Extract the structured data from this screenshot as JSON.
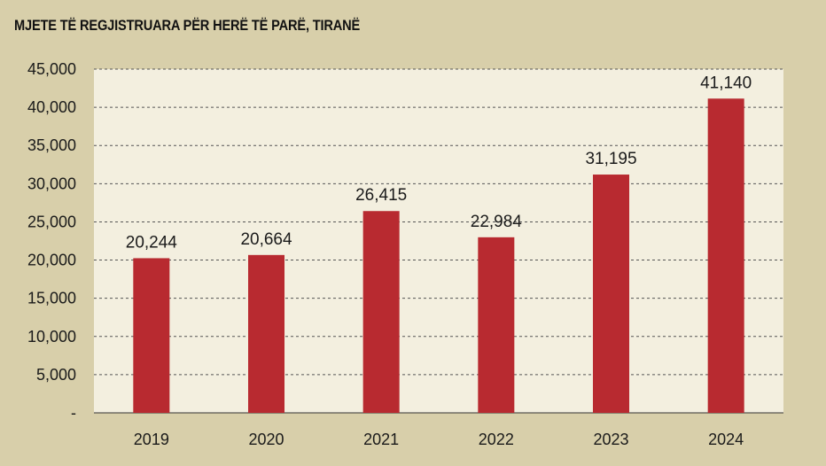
{
  "chart_data": {
    "type": "bar",
    "title": "MJETE TË REGJISTRUARA PËR HERË TË PARË, TIRANË",
    "categories": [
      "2019",
      "2020",
      "2021",
      "2022",
      "2023",
      "2024"
    ],
    "values": [
      20244,
      20664,
      26415,
      22984,
      31195,
      41140
    ],
    "value_labels": [
      "20,244",
      "20,664",
      "26,415",
      "22,984",
      "31,195",
      "41,140"
    ],
    "y_tick_labels": [
      "-",
      "5,000",
      "10,000",
      "15,000",
      "20,000",
      "25,000",
      "30,000",
      "35,000",
      "40,000",
      "45,000"
    ],
    "ylim": [
      0,
      45000
    ],
    "ytick_step": 5000,
    "grid": "horizontal dashed",
    "legend": "none",
    "colors": {
      "bar": "#b82a30",
      "plot_background": "#f3efdf",
      "page_background": "#d8cfaa",
      "grid": "#555555"
    }
  }
}
